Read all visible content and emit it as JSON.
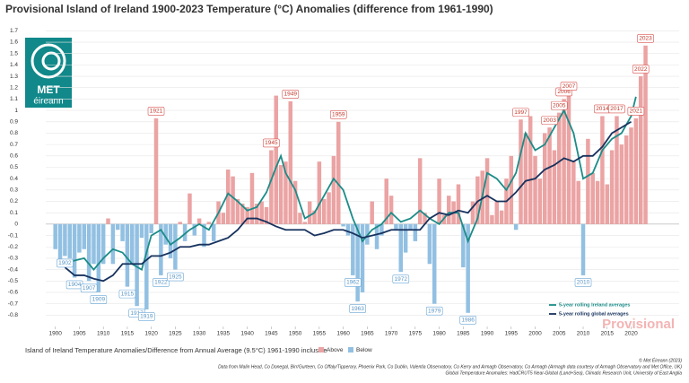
{
  "logo": [
    "MET",
    "éireann"
  ],
  "chart_data": {
    "type": "bar",
    "title": "Provisional Island of Ireland 1900-2023 Temperature (°C) Anomalies (difference from 1961-1990)",
    "x": [
      1900,
      1901,
      1902,
      1903,
      1904,
      1905,
      1906,
      1907,
      1908,
      1909,
      1910,
      1911,
      1912,
      1913,
      1914,
      1915,
      1916,
      1917,
      1918,
      1919,
      1920,
      1921,
      1922,
      1923,
      1924,
      1925,
      1926,
      1927,
      1928,
      1929,
      1930,
      1931,
      1932,
      1933,
      1934,
      1935,
      1936,
      1937,
      1938,
      1939,
      1940,
      1941,
      1942,
      1943,
      1944,
      1945,
      1946,
      1947,
      1948,
      1949,
      1950,
      1951,
      1952,
      1953,
      1954,
      1955,
      1956,
      1957,
      1958,
      1959,
      1960,
      1961,
      1962,
      1963,
      1964,
      1965,
      1966,
      1967,
      1968,
      1969,
      1970,
      1971,
      1972,
      1973,
      1974,
      1975,
      1976,
      1977,
      1978,
      1979,
      1980,
      1981,
      1982,
      1983,
      1984,
      1985,
      1986,
      1987,
      1988,
      1989,
      1990,
      1991,
      1992,
      1993,
      1994,
      1995,
      1996,
      1997,
      1998,
      1999,
      2000,
      2001,
      2002,
      2003,
      2004,
      2005,
      2006,
      2007,
      2008,
      2009,
      2010,
      2011,
      2012,
      2013,
      2014,
      2015,
      2016,
      2017,
      2018,
      2019,
      2020,
      2021,
      2022,
      2023
    ],
    "values": [
      -0.22,
      -0.33,
      -0.28,
      -0.3,
      -0.47,
      -0.25,
      -0.22,
      -0.5,
      -0.35,
      -0.6,
      -0.35,
      0.05,
      -0.35,
      -0.05,
      -0.15,
      -0.55,
      -0.35,
      -0.72,
      -0.12,
      -0.75,
      -0.08,
      0.93,
      -0.45,
      -0.18,
      -0.3,
      -0.4,
      0.02,
      -0.15,
      0.27,
      -0.1,
      0.05,
      -0.2,
      0.02,
      -0.15,
      0.2,
      0.1,
      0.48,
      0.42,
      0.22,
      0.18,
      0.15,
      0.45,
      0.18,
      0.2,
      0.15,
      0.65,
      1.13,
      0.52,
      0.55,
      1.08,
      0.38,
      0.1,
      0.02,
      0.2,
      0.12,
      0.55,
      0.22,
      0.28,
      0.6,
      0.9,
      -0.02,
      -0.1,
      -0.45,
      -0.68,
      -0.6,
      -0.18,
      0.2,
      -0.22,
      -0.1,
      0.4,
      0.25,
      -0.05,
      -0.42,
      -0.25,
      -0.05,
      -0.15,
      0.58,
      0.1,
      -0.35,
      -0.7,
      0.4,
      0.08,
      0.25,
      0.2,
      0.35,
      -0.38,
      -0.78,
      0.2,
      0.42,
      0.47,
      0.58,
      0.08,
      0.2,
      0.12,
      0.4,
      0.6,
      -0.05,
      0.92,
      0.8,
      0.95,
      0.6,
      0.4,
      0.8,
      0.85,
      0.65,
      0.98,
      1.1,
      1.15,
      0.55,
      0.38,
      -0.45,
      0.75,
      0.45,
      0.38,
      0.95,
      0.35,
      0.65,
      0.95,
      0.7,
      0.78,
      0.85,
      0.93,
      1.3,
      1.57
    ],
    "legend": [
      {
        "name": "Above",
        "color": "#eba3a3"
      },
      {
        "name": "Below",
        "color": "#92c0e2"
      }
    ],
    "annotated_years": [
      1902,
      1904,
      1907,
      1909,
      1915,
      1917,
      1919,
      1921,
      1922,
      1925,
      1945,
      1949,
      1959,
      1962,
      1963,
      1972,
      1979,
      1986,
      1997,
      2003,
      2005,
      2006,
      2007,
      2010,
      2014,
      2017,
      2021,
      2022,
      2023
    ],
    "lines": [
      {
        "name": "5-year rolling Ireland averages",
        "color": "#1b8c88",
        "x": [
          1902,
          1904,
          1906,
          1908,
          1910,
          1912,
          1914,
          1916,
          1918,
          1920,
          1922,
          1924,
          1926,
          1928,
          1930,
          1932,
          1934,
          1936,
          1938,
          1940,
          1942,
          1944,
          1946,
          1947,
          1948,
          1950,
          1952,
          1954,
          1956,
          1958,
          1960,
          1962,
          1964,
          1966,
          1968,
          1970,
          1972,
          1974,
          1976,
          1978,
          1980,
          1982,
          1984,
          1986,
          1988,
          1990,
          1992,
          1994,
          1996,
          1998,
          2000,
          2002,
          2004,
          2006,
          2008,
          2010,
          2012,
          2014,
          2016,
          2018,
          2020,
          2021
        ],
        "values": [
          -0.35,
          -0.32,
          -0.3,
          -0.4,
          -0.3,
          -0.22,
          -0.25,
          -0.35,
          -0.4,
          -0.1,
          -0.05,
          -0.18,
          -0.12,
          -0.05,
          0.0,
          -0.05,
          0.1,
          0.27,
          0.2,
          0.12,
          0.15,
          0.28,
          0.5,
          0.6,
          0.45,
          0.3,
          0.05,
          0.1,
          0.25,
          0.4,
          0.3,
          0.05,
          -0.15,
          -0.05,
          0.0,
          0.1,
          0.02,
          0.05,
          0.12,
          0.05,
          0.0,
          0.1,
          0.1,
          -0.15,
          0.05,
          0.45,
          0.4,
          0.3,
          0.45,
          0.8,
          0.65,
          0.7,
          0.85,
          1.0,
          0.8,
          0.4,
          0.45,
          0.65,
          0.75,
          0.8,
          0.95,
          1.12
        ]
      },
      {
        "name": "5-year rolling global averages",
        "color": "#17325e",
        "x": [
          1902,
          1904,
          1906,
          1908,
          1910,
          1912,
          1914,
          1916,
          1918,
          1920,
          1922,
          1924,
          1926,
          1928,
          1930,
          1932,
          1934,
          1936,
          1938,
          1940,
          1942,
          1944,
          1946,
          1948,
          1950,
          1952,
          1954,
          1956,
          1958,
          1960,
          1962,
          1964,
          1966,
          1968,
          1970,
          1972,
          1974,
          1976,
          1978,
          1980,
          1982,
          1984,
          1986,
          1988,
          1990,
          1992,
          1994,
          1996,
          1998,
          2000,
          2002,
          2004,
          2006,
          2008,
          2010,
          2012,
          2014,
          2016,
          2018,
          2020
        ],
        "values": [
          -0.38,
          -0.45,
          -0.45,
          -0.48,
          -0.5,
          -0.45,
          -0.35,
          -0.35,
          -0.35,
          -0.28,
          -0.28,
          -0.25,
          -0.2,
          -0.2,
          -0.18,
          -0.18,
          -0.15,
          -0.12,
          -0.05,
          0.05,
          0.05,
          0.02,
          -0.02,
          -0.05,
          -0.05,
          -0.05,
          -0.1,
          -0.08,
          -0.05,
          -0.05,
          -0.08,
          -0.12,
          -0.1,
          -0.08,
          -0.05,
          -0.05,
          -0.05,
          -0.05,
          0.05,
          0.1,
          0.08,
          0.12,
          0.1,
          0.2,
          0.25,
          0.2,
          0.2,
          0.28,
          0.38,
          0.4,
          0.48,
          0.52,
          0.58,
          0.55,
          0.6,
          0.6,
          0.68,
          0.8,
          0.85,
          0.9
        ]
      }
    ],
    "xlim": [
      1898,
      2030
    ],
    "ylim": [
      -0.9,
      1.75
    ],
    "xticks": [
      1900,
      1905,
      1910,
      1915,
      1920,
      1925,
      1930,
      1935,
      1940,
      1945,
      1950,
      1955,
      1960,
      1965,
      1970,
      1975,
      1980,
      1985,
      1990,
      1995,
      2000,
      2005,
      2010,
      2015,
      2020
    ],
    "yticks": [
      -0.8,
      -0.7,
      -0.6,
      -0.5,
      -0.4,
      -0.3,
      -0.2,
      -0.1,
      0,
      0.1,
      0.2,
      0.3,
      0.4,
      0.5,
      0.6,
      0.7,
      0.8,
      0.9,
      1,
      1.1,
      1.2,
      1.3,
      1.4,
      1.5,
      1.6,
      1.7
    ],
    "grid": true,
    "watermark": "Provisional",
    "caption": "Island of Ireland Temperature Anomalies/Difference from Annual Average (9.5°C) 1961-1990 inclusive",
    "credits": [
      "© Met Éireann (2023)",
      "Data from Malin Head, Co Donegal, Birr/Gurteen, Co Offaly/Tipperary, Phoenix Park, Co Dublin, Valentia Observatory, Co Kerry and Armagh Observatory, Co Armagh (Armagh data courtesy of Armagh Observatory and Met Office, UK)",
      "Global Temperature Anomalies: HadCRUT5 Near-Global (Land+Sea), Climatic Research Unit, University of East Anglia"
    ]
  }
}
